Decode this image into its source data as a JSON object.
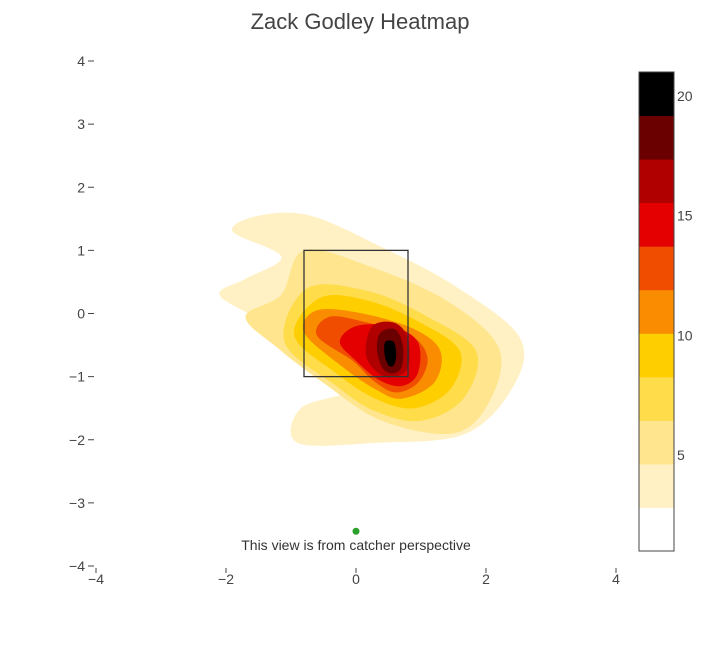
{
  "chart_data": {
    "type": "heatmap",
    "title": "Zack Godley Heatmap",
    "xlabel": "",
    "ylabel": "",
    "xlim": [
      -4,
      4
    ],
    "ylim": [
      -4,
      4
    ],
    "x_ticks": [
      -4,
      -2,
      0,
      2,
      4
    ],
    "y_ticks": [
      4,
      3,
      2,
      1,
      0,
      -1,
      -2,
      -3,
      -4
    ],
    "x_tick_labels": [
      "−4",
      "−2",
      "0",
      "2",
      "4"
    ],
    "y_tick_labels": [
      "4",
      "3",
      "2",
      "1",
      "0",
      "−1",
      "−2",
      "−3",
      "−4"
    ],
    "grid": false,
    "strike_zone": {
      "x": [
        -0.8,
        0.8
      ],
      "y": [
        -1.0,
        1.0
      ]
    },
    "home_plate_marker": {
      "x": 0,
      "y": -3.45,
      "color": "#2ca02c"
    },
    "density_peak": {
      "x": 0.5,
      "y": -0.6
    },
    "contour_levels": [
      2,
      4,
      6,
      8,
      10,
      12,
      14,
      16,
      18,
      20
    ],
    "colorscale": [
      "#ffffff",
      "#fff1c4",
      "#ffe58d",
      "#ffdc4a",
      "#ffce00",
      "#f98c00",
      "#f04d00",
      "#e40000",
      "#b00000",
      "#6a0000",
      "#000000"
    ],
    "colorbar": {
      "range": [
        1,
        21
      ],
      "tick_values": [
        5,
        10,
        15,
        20
      ],
      "tick_labels": [
        "5",
        "10",
        "15",
        "20"
      ]
    },
    "annotation": "This view is from catcher perspective"
  }
}
